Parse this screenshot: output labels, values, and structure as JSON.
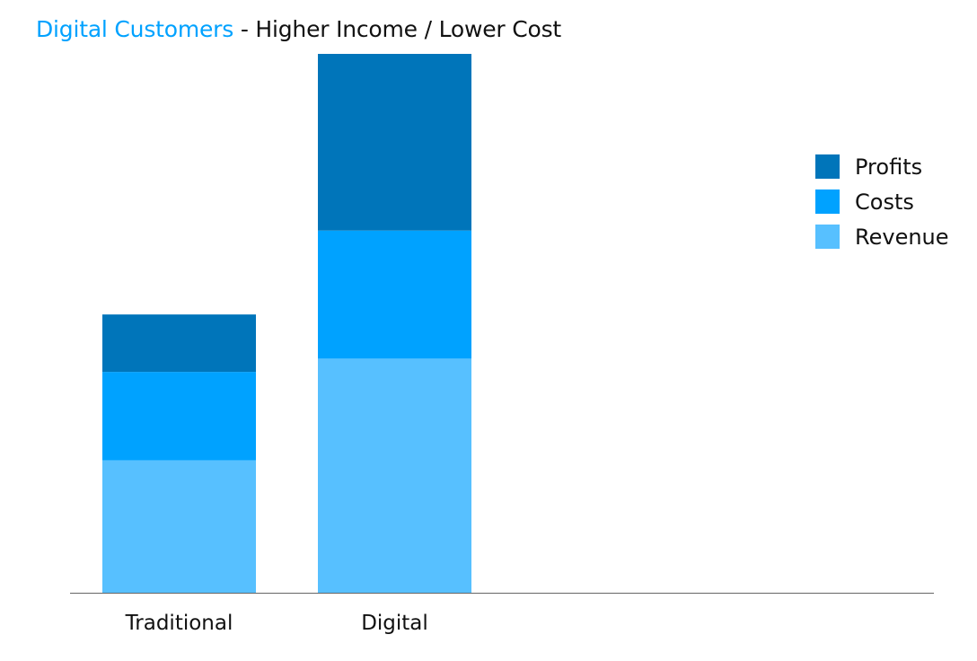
{
  "chart_data": {
    "type": "bar",
    "stacked": true,
    "title": {
      "accent": "Digital Customers",
      "rest": " - Higher Income / Lower Cost"
    },
    "categories": [
      "Traditional",
      "Digital"
    ],
    "series": [
      {
        "name": "Revenue",
        "values": [
          30,
          53
        ],
        "color": "#57c0ff"
      },
      {
        "name": "Costs",
        "values": [
          20,
          29
        ],
        "color": "#00a2ff"
      },
      {
        "name": "Profits",
        "values": [
          13,
          40
        ],
        "color": "#0075ba"
      }
    ],
    "ylim": [
      0,
      122
    ],
    "grid": false,
    "y_axis_visible": false,
    "legend_position": "top-right",
    "accent_color": "#00a2ff",
    "axis_color": "#666666"
  }
}
